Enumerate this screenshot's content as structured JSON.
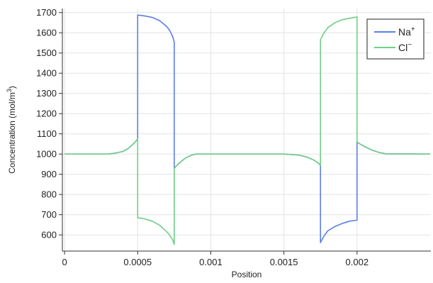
{
  "chart_data": {
    "type": "line",
    "xlabel": "Position",
    "ylabel_text": "Concentration (mol/m",
    "ylabel_sup": "3",
    "ylabel_close": ")",
    "xlim": [
      -1.5e-05,
      0.002505
    ],
    "ylim": [
      520,
      1720
    ],
    "grid": true,
    "legend_position": "top-right",
    "x_ticks": [
      0,
      0.0005,
      0.001,
      0.0015,
      0.002
    ],
    "x_tick_labels": [
      "0",
      "0.0005",
      "0.001",
      "0.0015",
      "0.002"
    ],
    "y_ticks": [
      600,
      700,
      800,
      900,
      1000,
      1100,
      1200,
      1300,
      1400,
      1500,
      1600,
      1700
    ],
    "y_tick_labels": [
      "600",
      "700",
      "800",
      "900",
      "1000",
      "1100",
      "1200",
      "1300",
      "1400",
      "1500",
      "1600",
      "1700"
    ],
    "series": [
      {
        "name": "Na",
        "name_sup": "+",
        "color": "#5b7ee8",
        "x": [
          0,
          0.0003,
          0.00035,
          0.0004,
          0.00043,
          0.00046,
          0.00048,
          0.0005,
          0.0005,
          0.00052,
          0.00055,
          0.0006,
          0.00065,
          0.0007,
          0.00072,
          0.00074,
          0.00075,
          0.00075,
          0.00077,
          0.0008,
          0.00083,
          0.00087,
          0.0009,
          0.0015,
          0.0016,
          0.00165,
          0.0017,
          0.00172,
          0.00174,
          0.00175,
          0.00175,
          0.00177,
          0.0018,
          0.00185,
          0.0019,
          0.00195,
          0.002,
          0.002,
          0.00202,
          0.00205,
          0.0021,
          0.00215,
          0.0022,
          0.0025
        ],
        "y": [
          1000,
          1000,
          1005,
          1013,
          1025,
          1043,
          1057,
          1075,
          1688,
          1686,
          1683,
          1676,
          1660,
          1630,
          1610,
          1580,
          1555,
          930,
          945,
          965,
          982,
          995,
          1000,
          1000,
          995,
          987,
          972,
          963,
          952,
          945,
          562,
          590,
          620,
          642,
          657,
          668,
          673,
          1060,
          1050,
          1038,
          1020,
          1008,
          1001,
          1000
        ]
      },
      {
        "name": "Cl",
        "name_sup": "−",
        "color": "#6fce86",
        "x": [
          0,
          0.0003,
          0.00035,
          0.0004,
          0.00043,
          0.00046,
          0.00048,
          0.0005,
          0.0005,
          0.00052,
          0.00055,
          0.0006,
          0.00065,
          0.0007,
          0.00072,
          0.00074,
          0.00075,
          0.00075,
          0.00077,
          0.0008,
          0.00083,
          0.00087,
          0.0009,
          0.0015,
          0.0016,
          0.00165,
          0.0017,
          0.00172,
          0.00174,
          0.00175,
          0.00175,
          0.00177,
          0.0018,
          0.00185,
          0.0019,
          0.00195,
          0.002,
          0.002,
          0.00202,
          0.00205,
          0.0021,
          0.00215,
          0.0022,
          0.0025
        ],
        "y": [
          1000,
          1000,
          1005,
          1013,
          1025,
          1043,
          1057,
          1075,
          685,
          683,
          679,
          668,
          648,
          615,
          598,
          575,
          553,
          930,
          945,
          965,
          982,
          995,
          1000,
          1000,
          995,
          987,
          972,
          963,
          952,
          945,
          1565,
          1595,
          1625,
          1650,
          1665,
          1672,
          1678,
          1060,
          1050,
          1038,
          1020,
          1008,
          1001,
          1000
        ]
      }
    ]
  }
}
